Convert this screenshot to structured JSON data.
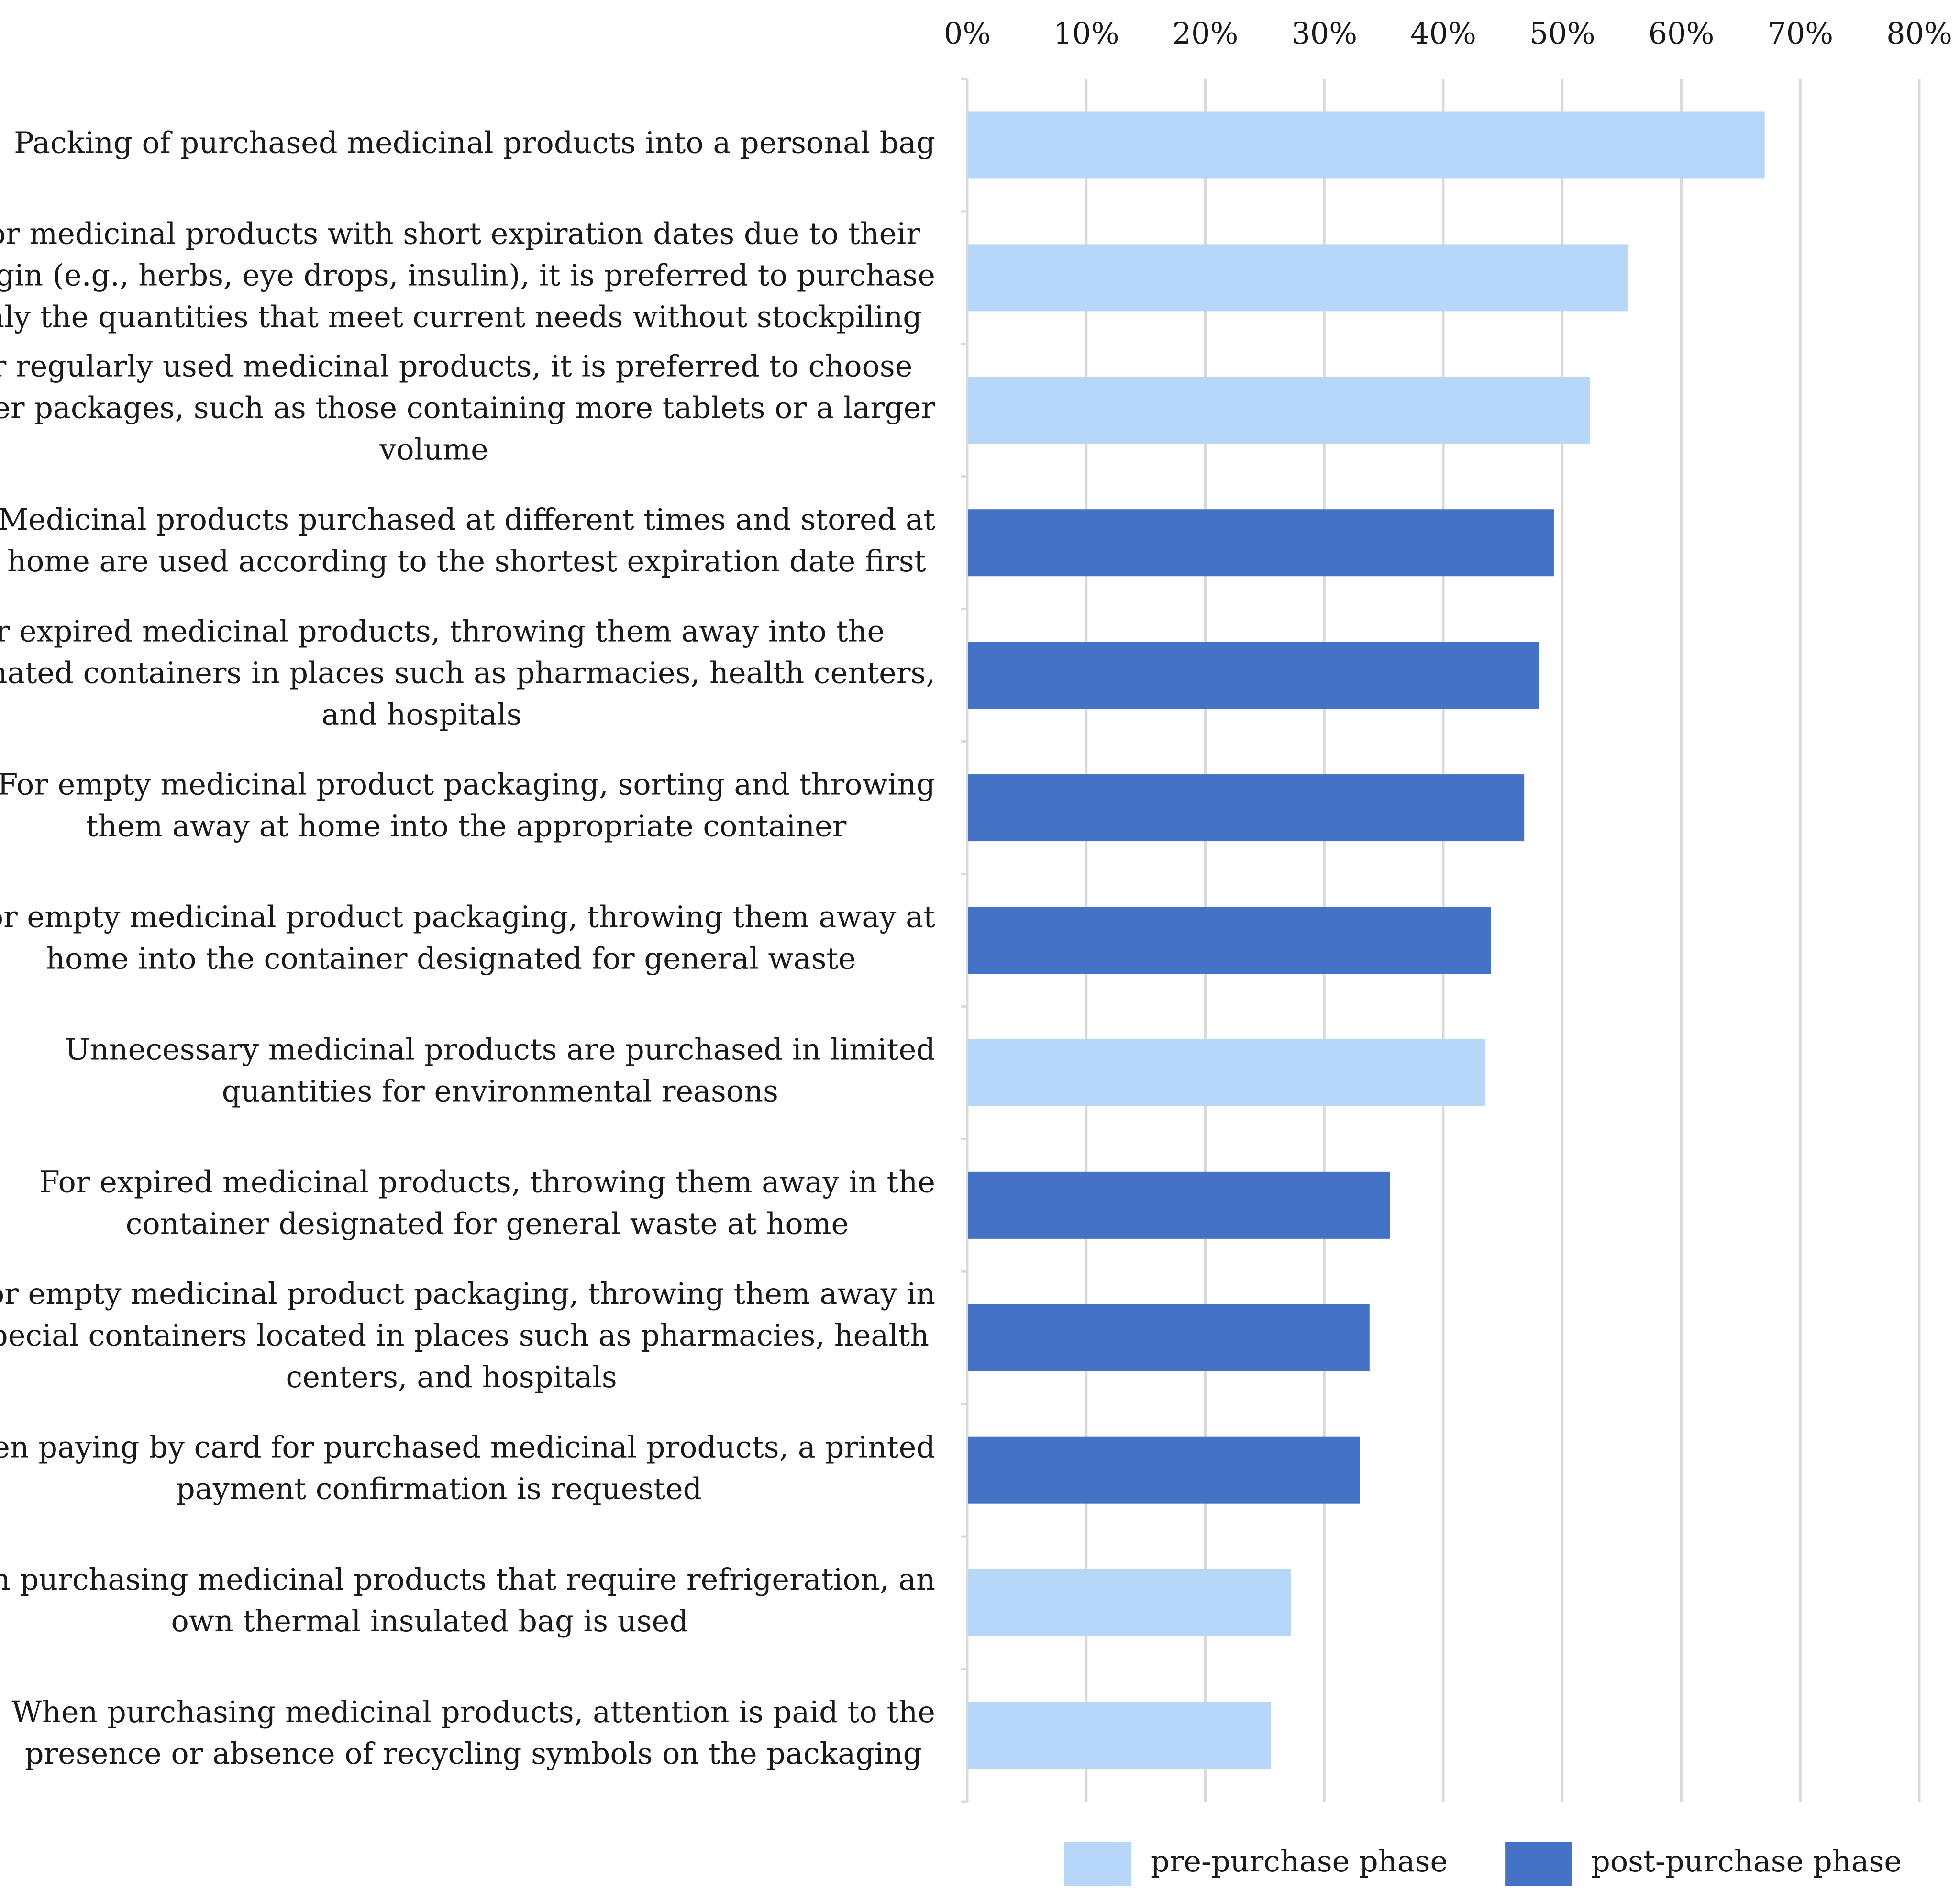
{
  "chart_data": {
    "type": "bar",
    "orientation": "horizontal",
    "title": "",
    "xlabel": "",
    "ylabel": "",
    "xlim": [
      0,
      80
    ],
    "x_ticks": [
      "0%",
      "10%",
      "20%",
      "30%",
      "40%",
      "50%",
      "60%",
      "70%",
      "80%"
    ],
    "x_axis_position": "top",
    "grid": true,
    "legend_position": "bottom-right",
    "series": [
      {
        "name": "pre-purchase phase",
        "color": "#b6d7f7"
      },
      {
        "name": "post-purchase phase",
        "color": "#4472c4"
      }
    ],
    "categories": [
      {
        "lines": [
          "Packing of purchased medicinal products into a personal bag"
        ],
        "value": 67,
        "series": "pre-purchase phase"
      },
      {
        "lines": [
          "For medicinal products with short expiration dates due to their",
          "origin (e.g., herbs, eye drops, insulin), it is preferred to purchase",
          "only the quantities that meet current needs without stockpiling"
        ],
        "value": 55.5,
        "series": "pre-purchase phase"
      },
      {
        "lines": [
          "For regularly used medicinal products, it is preferred to choose",
          "larger packages, such as those containing more tablets or a larger",
          "volume"
        ],
        "value": 52.3,
        "series": "pre-purchase phase"
      },
      {
        "lines": [
          "Medicinal products purchased at different times and stored at",
          "home are used according to the shortest expiration date first"
        ],
        "value": 49.3,
        "series": "post-purchase phase"
      },
      {
        "lines": [
          "For expired medicinal products, throwing them away into the",
          "designated containers in places such as pharmacies, health centers,",
          "and hospitals"
        ],
        "value": 48,
        "series": "post-purchase phase"
      },
      {
        "lines": [
          "For empty medicinal product packaging, sorting and throwing",
          "them away at home into the appropriate container"
        ],
        "value": 46.8,
        "series": "post-purchase phase"
      },
      {
        "lines": [
          "For empty medicinal product packaging, throwing them away at",
          "home into the container designated for general waste"
        ],
        "value": 44,
        "series": "post-purchase phase"
      },
      {
        "lines": [
          "Unnecessary medicinal products are purchased in limited",
          "quantities for environmental reasons"
        ],
        "value": 43.5,
        "series": "pre-purchase phase"
      },
      {
        "lines": [
          "For expired medicinal products, throwing them away in the",
          "container designated for general waste at home"
        ],
        "value": 35.5,
        "series": "post-purchase phase"
      },
      {
        "lines": [
          "For empty medicinal product packaging, throwing them away in",
          "special containers located in places such as pharmacies, health",
          "centers, and hospitals"
        ],
        "value": 33.8,
        "series": "post-purchase phase"
      },
      {
        "lines": [
          "When paying by card for purchased medicinal products, a printed",
          "payment confirmation is requested"
        ],
        "value": 33,
        "series": "post-purchase phase"
      },
      {
        "lines": [
          "When purchasing medicinal products that require refrigeration, an",
          "own thermal insulated bag is used"
        ],
        "value": 27.2,
        "series": "pre-purchase phase"
      },
      {
        "lines": [
          "When purchasing medicinal products, attention is paid to the",
          "presence or absence of recycling symbols on the packaging"
        ],
        "value": 25.5,
        "series": "pre-purchase phase"
      }
    ]
  }
}
